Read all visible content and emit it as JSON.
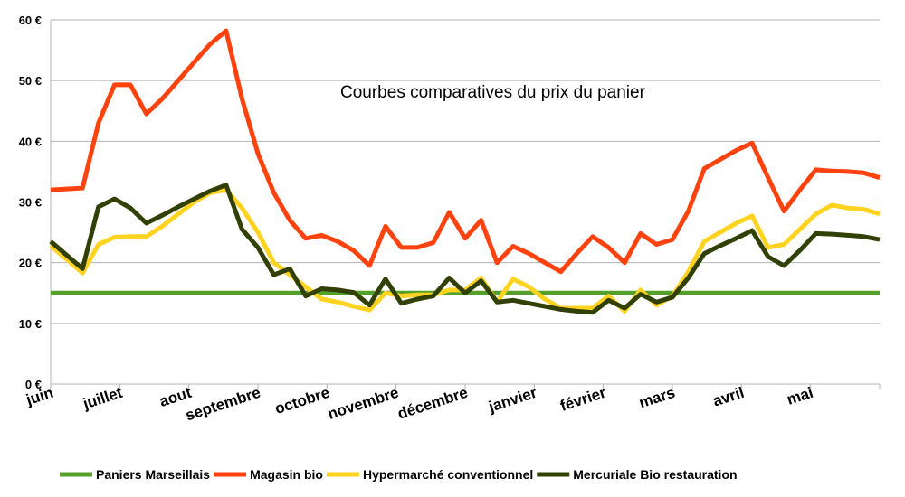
{
  "chart_data": {
    "type": "line",
    "title": "Courbes comparatives du prix du panier",
    "xlabel": "",
    "ylabel": "",
    "categories": [
      "juin",
      "juillet",
      "aout",
      "septembre",
      "octobre",
      "novembre",
      "décembre",
      "janvier",
      "février",
      "mars",
      "avril",
      "mai"
    ],
    "y_ticks": [
      "0 €",
      "10 €",
      "20 €",
      "30 €",
      "40 €",
      "50 €",
      "60 €"
    ],
    "ylim": [
      0,
      60
    ],
    "xlim": [
      0,
      52
    ],
    "grid": true,
    "legend_position": "bottom",
    "series": [
      {
        "name": "Paniers Marseillais",
        "color": "#55a02a",
        "x": [
          0,
          52
        ],
        "values": [
          15,
          15
        ]
      },
      {
        "name": "Magasin bio",
        "color": "#ff420e",
        "x": [
          0,
          2,
          3,
          4,
          5,
          6,
          7,
          8,
          9,
          10,
          11,
          12,
          13,
          14,
          15,
          16,
          17,
          18,
          19,
          20,
          21,
          22,
          23,
          24,
          25,
          26,
          27,
          28,
          29,
          30,
          31,
          32,
          33,
          34,
          35,
          36,
          37,
          38,
          39,
          40,
          41,
          42,
          43,
          44,
          45,
          46,
          47,
          48,
          49,
          50,
          51,
          52
        ],
        "values": [
          32,
          32.3,
          43,
          49.3,
          49.3,
          44.5,
          47,
          50,
          53,
          56,
          58.2,
          47,
          38,
          31.5,
          27,
          24,
          24.5,
          23.5,
          22,
          19.5,
          26,
          22.5,
          22.5,
          23.3,
          28.3,
          24,
          27,
          20,
          22.7,
          21.5,
          20,
          18.5,
          21.5,
          24.3,
          22.5,
          20,
          24.8,
          23,
          23.8,
          28.5,
          35.5,
          37,
          38.5,
          39.7,
          34,
          28.5,
          32,
          35.3,
          35.1,
          35,
          34.8,
          34
        ]
      },
      {
        "name": "Hypermarché conventionnel",
        "color": "#ffd320",
        "x": [
          0,
          2,
          3,
          4,
          5,
          6,
          7,
          8,
          9,
          10,
          11,
          12,
          13,
          14,
          15,
          16,
          17,
          18,
          19,
          20,
          21,
          22,
          23,
          24,
          25,
          26,
          27,
          28,
          29,
          30,
          31,
          32,
          33,
          34,
          35,
          36,
          37,
          38,
          39,
          40,
          41,
          42,
          43,
          44,
          45,
          46,
          47,
          48,
          49,
          50,
          51,
          52
        ],
        "values": [
          22.8,
          18.3,
          23,
          24.2,
          24.3,
          24.3,
          26,
          28,
          30,
          31.5,
          32,
          29,
          25,
          20,
          18,
          16,
          14,
          13.5,
          12.8,
          12.2,
          15,
          14.5,
          14.7,
          14.7,
          15.5,
          15.5,
          17.5,
          13.5,
          17.3,
          16,
          14,
          12.5,
          12.5,
          12.5,
          14.5,
          12,
          15.5,
          13,
          14.5,
          18.5,
          23.5,
          25,
          26.5,
          27.7,
          22.5,
          23,
          25.5,
          28,
          29.5,
          29,
          28.8,
          28
        ]
      },
      {
        "name": "Mercuriale Bio restauration",
        "color": "#314004",
        "x": [
          0,
          2,
          3,
          4,
          5,
          6,
          7,
          8,
          9,
          10,
          11,
          12,
          13,
          14,
          15,
          16,
          17,
          18,
          19,
          20,
          21,
          22,
          23,
          24,
          25,
          26,
          27,
          28,
          29,
          30,
          31,
          32,
          33,
          34,
          35,
          36,
          37,
          38,
          39,
          40,
          41,
          42,
          43,
          44,
          45,
          46,
          47,
          48,
          49,
          50,
          51,
          52
        ],
        "values": [
          23.5,
          19,
          29.2,
          30.5,
          29,
          26.5,
          27.8,
          29.2,
          30.5,
          31.8,
          32.8,
          25.5,
          22.5,
          18,
          19,
          14.5,
          15.7,
          15.5,
          15.1,
          13,
          17.3,
          13.3,
          14,
          14.5,
          17.5,
          15,
          17,
          13.5,
          13.8,
          13.3,
          12.8,
          12.3,
          12,
          11.8,
          13.8,
          12.5,
          14.8,
          13.5,
          14.3,
          17.5,
          21.5,
          22.8,
          24,
          25.3,
          21,
          19.5,
          22,
          24.8,
          24.7,
          24.5,
          24.3,
          23.8
        ]
      }
    ]
  }
}
